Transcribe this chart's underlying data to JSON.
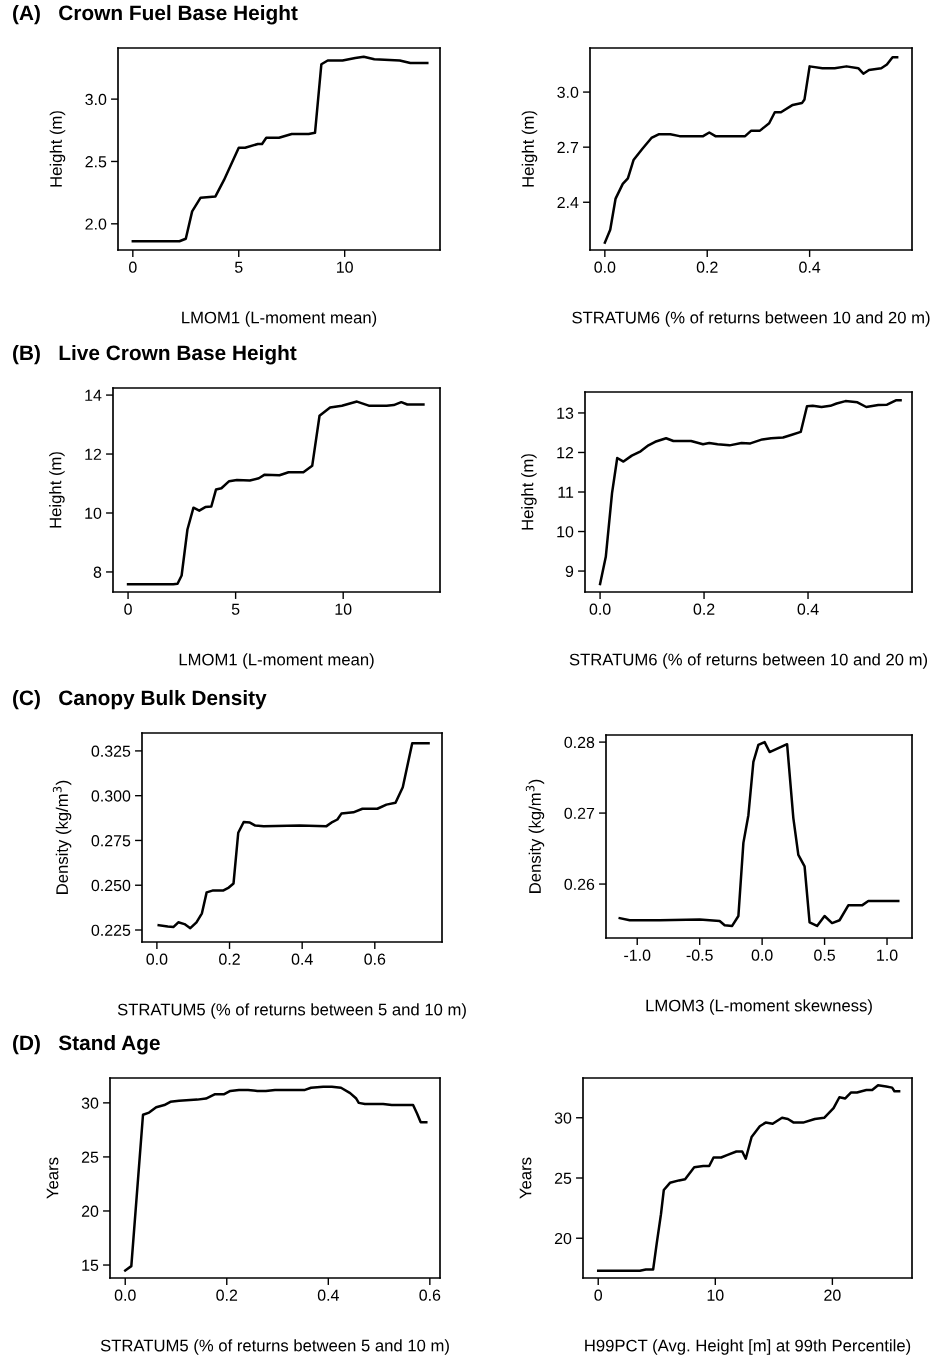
{
  "chart_data": [
    {
      "type": "line",
      "title": "(A)   Crown Fuel Base Height",
      "xlabel": "LMOM1 (L-moment mean)",
      "ylabel": "Height (m)",
      "xlim": [
        -0.7,
        14.5
      ],
      "ylim": [
        1.79,
        3.41
      ],
      "xticks": [
        0,
        5,
        10
      ],
      "yticks": [
        {
          "value": 2,
          "label": "2.0"
        },
        2.5,
        {
          "value": 3,
          "label": "3.0"
        }
      ],
      "grid": false,
      "marker": "none",
      "line_style": "solid",
      "series": [
        {
          "color": "#000000",
          "x": [
            0,
            2.2,
            2.5,
            2.8,
            3.2,
            3.9,
            4.3,
            5.0,
            5.3,
            5.9,
            6.1,
            6.3,
            6.9,
            7.5,
            8.3,
            8.6,
            8.9,
            9.2,
            9.9,
            10.5,
            10.9,
            11.4,
            12.6,
            13.1,
            13.9
          ],
          "values": [
            1.86,
            1.86,
            1.88,
            2.1,
            2.21,
            2.22,
            2.35,
            2.61,
            2.61,
            2.64,
            2.64,
            2.69,
            2.69,
            2.72,
            2.72,
            2.73,
            3.28,
            3.31,
            3.31,
            3.33,
            3.34,
            3.32,
            3.31,
            3.29,
            3.29
          ]
        }
      ]
    },
    {
      "type": "line",
      "xlabel": "STRATUM6 (% of returns between 10 and 20 m)",
      "ylabel": "Height (m)",
      "xlim": [
        -0.029,
        0.6
      ],
      "ylim": [
        2.14,
        3.24
      ],
      "xticks": [
        {
          "value": 0,
          "label": "0.0"
        },
        0.2,
        0.4
      ],
      "yticks": [
        2.4,
        2.7,
        {
          "value": 3,
          "label": "3.0"
        }
      ],
      "grid": false,
      "marker": "none",
      "line_style": "solid",
      "series": [
        {
          "color": "#000000",
          "x": [
            0.0,
            0.0105,
            0.021,
            0.035,
            0.045,
            0.056,
            0.073,
            0.091,
            0.105,
            0.128,
            0.146,
            0.192,
            0.204,
            0.216,
            0.239,
            0.274,
            0.286,
            0.303,
            0.321,
            0.332,
            0.344,
            0.367,
            0.385,
            0.39,
            0.4,
            0.425,
            0.449,
            0.472,
            0.495,
            0.505,
            0.516,
            0.54,
            0.551,
            0.562,
            0.571
          ],
          "values": [
            2.18,
            2.25,
            2.42,
            2.5,
            2.53,
            2.63,
            2.69,
            2.75,
            2.77,
            2.77,
            2.76,
            2.76,
            2.78,
            2.76,
            2.76,
            2.76,
            2.79,
            2.79,
            2.83,
            2.89,
            2.89,
            2.93,
            2.94,
            2.96,
            3.14,
            3.13,
            3.13,
            3.14,
            3.13,
            3.1,
            3.12,
            3.13,
            3.15,
            3.19,
            3.19
          ]
        }
      ]
    },
    {
      "type": "line",
      "title": "(B)   Live Crown Base Height",
      "xlabel": "LMOM1 (L-moment mean)",
      "ylabel": "Height (m)",
      "xlim": [
        -0.7,
        14.5
      ],
      "ylim": [
        7.32,
        14.24
      ],
      "xticks": [
        0,
        5,
        10
      ],
      "yticks": [
        8,
        10,
        12,
        14
      ],
      "grid": false,
      "marker": "none",
      "line_style": "solid",
      "series": [
        {
          "color": "#000000",
          "x": [
            0,
            2.1,
            2.3,
            2.49,
            2.76,
            3.04,
            3.31,
            3.59,
            3.87,
            4.09,
            4.34,
            4.7,
            5.06,
            5.66,
            6.08,
            6.35,
            7.04,
            7.46,
            8.15,
            8.56,
            8.9,
            9.39,
            9.94,
            10.64,
            11.19,
            12.02,
            12.35,
            12.7,
            12.98,
            13.73
          ],
          "values": [
            7.58,
            7.58,
            7.6,
            7.88,
            9.44,
            10.18,
            10.08,
            10.2,
            10.22,
            10.8,
            10.84,
            11.08,
            11.12,
            11.1,
            11.18,
            11.3,
            11.28,
            11.38,
            11.38,
            11.6,
            13.3,
            13.58,
            13.64,
            13.78,
            13.64,
            13.64,
            13.66,
            13.76,
            13.68,
            13.68
          ]
        }
      ]
    },
    {
      "type": "line",
      "xlabel": "STRATUM6 (% of returns between 10 and 20 m)",
      "ylabel": "Height (m)",
      "xlim": [
        -0.029,
        0.6
      ],
      "ylim": [
        8.47,
        13.53
      ],
      "xticks": [
        {
          "value": 0,
          "label": "0.0"
        },
        0.2,
        0.4
      ],
      "yticks": [
        9,
        10,
        11,
        12,
        13
      ],
      "grid": false,
      "marker": "none",
      "line_style": "solid",
      "series": [
        {
          "color": "#000000",
          "x": [
            0.0,
            0.011,
            0.023,
            0.033,
            0.045,
            0.061,
            0.078,
            0.093,
            0.106,
            0.127,
            0.141,
            0.175,
            0.198,
            0.21,
            0.226,
            0.249,
            0.272,
            0.289,
            0.312,
            0.329,
            0.352,
            0.369,
            0.386,
            0.398,
            0.409,
            0.426,
            0.443,
            0.455,
            0.472,
            0.495,
            0.512,
            0.535,
            0.552,
            0.569,
            0.578
          ],
          "values": [
            8.67,
            9.36,
            10.97,
            11.86,
            11.77,
            11.92,
            12.03,
            12.18,
            12.27,
            12.36,
            12.29,
            12.29,
            12.21,
            12.24,
            12.21,
            12.18,
            12.24,
            12.23,
            12.33,
            12.36,
            12.38,
            12.45,
            12.52,
            13.17,
            13.18,
            13.15,
            13.18,
            13.24,
            13.3,
            13.27,
            13.15,
            13.2,
            13.21,
            13.32,
            13.32
          ]
        }
      ]
    },
    {
      "type": "line",
      "title": "(C)   Canopy Bulk Density",
      "xlabel": "STRATUM5 (% of returns between 5 and 10 m)",
      "ylabel": "Density (kg/m$^{3}$)",
      "xlim": [
        -0.041,
        0.785
      ],
      "ylim": [
        0.2183,
        0.335
      ],
      "xticks": [
        {
          "value": 0,
          "label": "0.0"
        },
        0.2,
        0.4,
        0.6
      ],
      "yticks": [
        0.225,
        {
          "value": 0.25,
          "label": "0.250"
        },
        0.275,
        {
          "value": 0.3,
          "label": "0.300"
        },
        0.325
      ],
      "grid": false,
      "marker": "none",
      "line_style": "solid",
      "series": [
        {
          "color": "#000000",
          "x": [
            0.005,
            0.03,
            0.046,
            0.059,
            0.076,
            0.092,
            0.109,
            0.124,
            0.137,
            0.153,
            0.182,
            0.198,
            0.211,
            0.224,
            0.239,
            0.256,
            0.271,
            0.294,
            0.393,
            0.467,
            0.483,
            0.497,
            0.508,
            0.541,
            0.566,
            0.607,
            0.632,
            0.657,
            0.677,
            0.703,
            0.748
          ],
          "values": [
            0.2277,
            0.227,
            0.2267,
            0.2293,
            0.2283,
            0.226,
            0.2293,
            0.2343,
            0.246,
            0.247,
            0.247,
            0.2487,
            0.251,
            0.2793,
            0.2853,
            0.285,
            0.2833,
            0.283,
            0.2833,
            0.283,
            0.2853,
            0.2867,
            0.29,
            0.2907,
            0.2927,
            0.2927,
            0.295,
            0.296,
            0.3047,
            0.3293,
            0.3293
          ]
        }
      ]
    },
    {
      "type": "line",
      "xlabel": "LMOM3 (L-moment skewness)",
      "ylabel": "Density (kg/m$^{3}$)",
      "xlim": [
        -1.25,
        1.2
      ],
      "ylim": [
        0.2524,
        0.281
      ],
      "xticks": [
        {
          "value": -1,
          "label": "-1.0"
        },
        -0.5,
        {
          "value": 0,
          "label": "0.0"
        },
        0.5,
        {
          "value": 1,
          "label": "1.0"
        }
      ],
      "yticks": [
        0.26,
        0.27,
        0.28
      ],
      "grid": false,
      "marker": "none",
      "line_style": "solid",
      "series": [
        {
          "color": "#000000",
          "x": [
            -1.14,
            -1.06,
            -0.82,
            -0.5,
            -0.34,
            -0.3,
            -0.24,
            -0.19,
            -0.15,
            -0.11,
            -0.07,
            -0.03,
            0.02,
            0.06,
            0.2,
            0.25,
            0.29,
            0.34,
            0.38,
            0.44,
            0.5,
            0.56,
            0.62,
            0.69,
            0.8,
            0.85,
            1.09
          ],
          "values": [
            0.2552,
            0.2549,
            0.2549,
            0.255,
            0.2548,
            0.2542,
            0.2541,
            0.2555,
            0.2658,
            0.2697,
            0.2772,
            0.2796,
            0.28,
            0.2786,
            0.2797,
            0.2693,
            0.2641,
            0.2625,
            0.2546,
            0.2541,
            0.2555,
            0.2545,
            0.2549,
            0.257,
            0.257,
            0.2576,
            0.2576
          ]
        }
      ]
    },
    {
      "type": "line",
      "title": "(D)   Stand Age",
      "xlabel": "STRATUM5 (% of returns between 5 and 10 m)",
      "ylabel": "Years",
      "xlim": [
        -0.03,
        0.62
      ],
      "ylim": [
        13.8,
        32.3
      ],
      "xticks": [
        {
          "value": 0,
          "label": "0.0"
        },
        0.2,
        0.4,
        0.6
      ],
      "yticks": [
        15,
        20,
        25,
        30
      ],
      "grid": false,
      "marker": "none",
      "line_style": "solid",
      "series": [
        {
          "color": "#000000",
          "x": [
            0.0,
            0.012,
            0.035,
            0.047,
            0.061,
            0.077,
            0.089,
            0.106,
            0.142,
            0.159,
            0.177,
            0.195,
            0.207,
            0.224,
            0.242,
            0.26,
            0.277,
            0.295,
            0.313,
            0.331,
            0.354,
            0.366,
            0.39,
            0.407,
            0.425,
            0.443,
            0.455,
            0.46,
            0.472,
            0.508,
            0.525,
            0.567,
            0.575,
            0.582,
            0.593
          ],
          "values": [
            14.5,
            14.9,
            28.9,
            29.1,
            29.6,
            29.8,
            30.1,
            30.2,
            30.3,
            30.4,
            30.8,
            30.8,
            31.1,
            31.2,
            31.2,
            31.1,
            31.1,
            31.2,
            31.2,
            31.2,
            31.2,
            31.4,
            31.5,
            31.5,
            31.4,
            30.9,
            30.4,
            30.0,
            29.9,
            29.9,
            29.8,
            29.8,
            29.0,
            28.2,
            28.2
          ]
        }
      ]
    },
    {
      "type": "line",
      "xlabel": "H99PCT (Avg. Height [m] at 99th Percentile)",
      "ylabel": "Years",
      "xlim": [
        -1.3,
        26.8
      ],
      "ylim": [
        16.7,
        33.3
      ],
      "xticks": [
        0,
        10,
        20
      ],
      "yticks": [
        20,
        25,
        30
      ],
      "grid": false,
      "marker": "none",
      "line_style": "solid",
      "series": [
        {
          "color": "#000000",
          "x": [
            0,
            3.56,
            4.07,
            4.69,
            5.0,
            5.36,
            5.6,
            6.13,
            6.9,
            7.42,
            8.2,
            8.97,
            9.48,
            9.85,
            10.5,
            11.0,
            11.8,
            12.3,
            12.6,
            13.1,
            13.8,
            14.3,
            14.9,
            15.7,
            16.2,
            16.7,
            17.5,
            18.5,
            19.3,
            20.1,
            20.6,
            21.1,
            21.6,
            22.1,
            22.9,
            23.4,
            23.9,
            24.6,
            25.1,
            25.3,
            25.7
          ],
          "values": [
            17.3,
            17.3,
            17.4,
            17.4,
            19.6,
            22.0,
            24.0,
            24.6,
            24.8,
            24.9,
            25.9,
            26.0,
            26.0,
            26.7,
            26.7,
            26.9,
            27.2,
            27.2,
            26.6,
            28.4,
            29.3,
            29.6,
            29.5,
            30.0,
            29.9,
            29.6,
            29.6,
            29.9,
            30.0,
            30.8,
            31.7,
            31.6,
            32.1,
            32.1,
            32.3,
            32.3,
            32.7,
            32.6,
            32.5,
            32.2,
            32.2
          ]
        }
      ]
    }
  ]
}
